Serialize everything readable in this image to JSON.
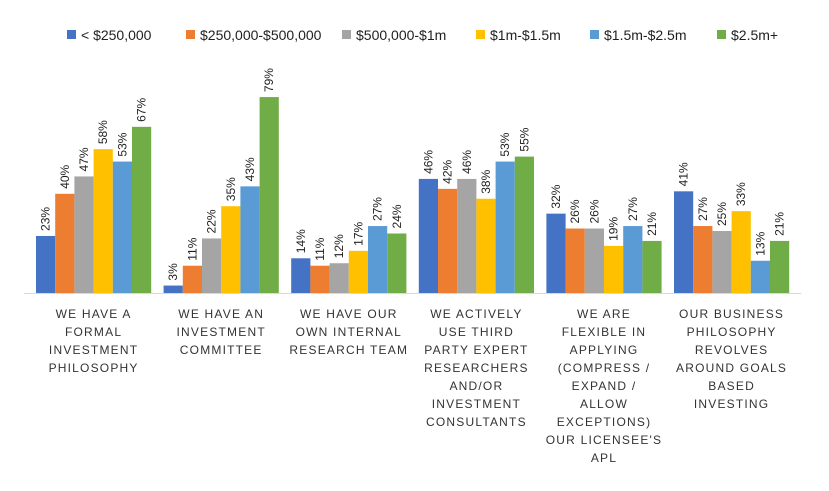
{
  "chart_data": {
    "type": "bar",
    "title": "",
    "xlabel": "",
    "ylabel": "",
    "ylim": [
      0,
      80
    ],
    "grid": false,
    "legend_position": "top",
    "categories": [
      [
        "WE HAVE A",
        "FORMAL",
        "INVESTMENT",
        "PHILOSOPHY"
      ],
      [
        "WE HAVE AN",
        "INVESTMENT",
        "COMMITTEE"
      ],
      [
        "WE HAVE OUR",
        "OWN INTERNAL",
        "RESEARCH TEAM"
      ],
      [
        "WE ACTIVELY",
        "USE THIRD",
        "PARTY EXPERT",
        "RESEARCHERS",
        "AND/OR",
        "INVESTMENT",
        "CONSULTANTS"
      ],
      [
        "WE ARE",
        "FLEXIBLE IN",
        "APPLYING",
        "(COMPRESS /",
        "EXPAND /",
        "ALLOW",
        "EXCEPTIONS)",
        "OUR LICENSEE'S",
        "APL"
      ],
      [
        "OUR BUSINESS",
        "PHILOSOPHY",
        "REVOLVES",
        "AROUND GOALS",
        "BASED",
        "INVESTING"
      ]
    ],
    "series": [
      {
        "name": "< $250,000",
        "color": "#4472C4",
        "values": [
          23,
          3,
          14,
          46,
          32,
          41
        ]
      },
      {
        "name": "$250,000-$500,000",
        "color": "#ED7D31",
        "values": [
          40,
          11,
          11,
          42,
          26,
          27
        ]
      },
      {
        "name": "$500,000-$1m",
        "color": "#A5A5A5",
        "values": [
          47,
          22,
          12,
          46,
          26,
          25
        ]
      },
      {
        "name": "$1m-$1.5m",
        "color": "#FFC000",
        "values": [
          58,
          35,
          17,
          38,
          19,
          33
        ]
      },
      {
        "name": "$1.5m-$2.5m",
        "color": "#5B9BD5",
        "values": [
          53,
          43,
          27,
          53,
          27,
          13
        ]
      },
      {
        "name": "$2.5m+",
        "color": "#70AD47",
        "values": [
          67,
          79,
          24,
          55,
          21,
          21
        ]
      }
    ],
    "value_suffix": "%"
  }
}
